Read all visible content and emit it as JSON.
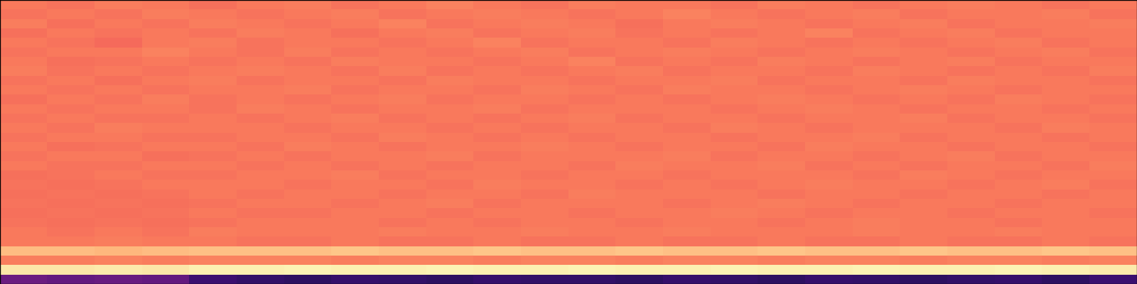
{
  "chart_data": {
    "type": "heatmap",
    "tick_labels": false,
    "color_range": [
      0,
      1
    ],
    "cells": [
      [
        0.72,
        0.71,
        0.73,
        0.72,
        0.7,
        0.72,
        0.73,
        0.71,
        0.72,
        0.74,
        0.72,
        0.71,
        0.73,
        0.72,
        0.72,
        0.71,
        0.73,
        0.72,
        0.71,
        0.72,
        0.73,
        0.72,
        0.71,
        0.72
      ],
      [
        0.71,
        0.72,
        0.71,
        0.73,
        0.72,
        0.71,
        0.72,
        0.73,
        0.71,
        0.72,
        0.73,
        0.72,
        0.71,
        0.72,
        0.74,
        0.72,
        0.71,
        0.72,
        0.73,
        0.71,
        0.72,
        0.72,
        0.73,
        0.71
      ],
      [
        0.73,
        0.7,
        0.72,
        0.71,
        0.73,
        0.72,
        0.71,
        0.72,
        0.74,
        0.71,
        0.72,
        0.73,
        0.72,
        0.7,
        0.72,
        0.73,
        0.72,
        0.71,
        0.72,
        0.73,
        0.71,
        0.72,
        0.72,
        0.73
      ],
      [
        0.7,
        0.72,
        0.71,
        0.72,
        0.71,
        0.73,
        0.72,
        0.7,
        0.72,
        0.73,
        0.71,
        0.72,
        0.73,
        0.71,
        0.72,
        0.71,
        0.72,
        0.74,
        0.71,
        0.72,
        0.73,
        0.71,
        0.72,
        0.72
      ],
      [
        0.72,
        0.71,
        0.69,
        0.72,
        0.73,
        0.71,
        0.72,
        0.72,
        0.71,
        0.72,
        0.74,
        0.71,
        0.72,
        0.72,
        0.71,
        0.73,
        0.72,
        0.71,
        0.72,
        0.71,
        0.72,
        0.73,
        0.71,
        0.72
      ],
      [
        0.71,
        0.72,
        0.72,
        0.74,
        0.72,
        0.71,
        0.73,
        0.71,
        0.72,
        0.71,
        0.72,
        0.73,
        0.71,
        0.72,
        0.73,
        0.72,
        0.71,
        0.72,
        0.73,
        0.72,
        0.71,
        0.72,
        0.73,
        0.71
      ],
      [
        0.72,
        0.7,
        0.71,
        0.72,
        0.71,
        0.72,
        0.71,
        0.73,
        0.72,
        0.72,
        0.71,
        0.72,
        0.74,
        0.71,
        0.72,
        0.71,
        0.73,
        0.72,
        0.71,
        0.72,
        0.73,
        0.71,
        0.72,
        0.72
      ],
      [
        0.73,
        0.71,
        0.72,
        0.71,
        0.72,
        0.73,
        0.72,
        0.71,
        0.73,
        0.71,
        0.72,
        0.71,
        0.72,
        0.73,
        0.71,
        0.72,
        0.72,
        0.71,
        0.73,
        0.72,
        0.71,
        0.72,
        0.71,
        0.73
      ],
      [
        0.71,
        0.72,
        0.7,
        0.72,
        0.73,
        0.71,
        0.72,
        0.72,
        0.71,
        0.73,
        0.72,
        0.72,
        0.71,
        0.72,
        0.72,
        0.73,
        0.71,
        0.72,
        0.72,
        0.71,
        0.73,
        0.72,
        0.72,
        0.71
      ],
      [
        0.72,
        0.71,
        0.72,
        0.71,
        0.72,
        0.72,
        0.73,
        0.71,
        0.72,
        0.72,
        0.71,
        0.73,
        0.72,
        0.71,
        0.73,
        0.72,
        0.72,
        0.71,
        0.72,
        0.73,
        0.72,
        0.71,
        0.72,
        0.72
      ],
      [
        0.7,
        0.72,
        0.71,
        0.73,
        0.71,
        0.72,
        0.71,
        0.72,
        0.73,
        0.71,
        0.72,
        0.72,
        0.71,
        0.72,
        0.71,
        0.72,
        0.73,
        0.72,
        0.71,
        0.72,
        0.71,
        0.73,
        0.72,
        0.71
      ],
      [
        0.72,
        0.71,
        0.72,
        0.72,
        0.71,
        0.73,
        0.72,
        0.71,
        0.72,
        0.72,
        0.73,
        0.71,
        0.72,
        0.72,
        0.72,
        0.71,
        0.72,
        0.73,
        0.72,
        0.71,
        0.72,
        0.72,
        0.71,
        0.72
      ],
      [
        0.71,
        0.72,
        0.71,
        0.71,
        0.72,
        0.71,
        0.72,
        0.73,
        0.71,
        0.72,
        0.71,
        0.72,
        0.73,
        0.71,
        0.72,
        0.72,
        0.71,
        0.72,
        0.72,
        0.73,
        0.71,
        0.72,
        0.72,
        0.71
      ],
      [
        0.72,
        0.71,
        0.73,
        0.72,
        0.72,
        0.72,
        0.71,
        0.72,
        0.72,
        0.71,
        0.72,
        0.71,
        0.72,
        0.72,
        0.71,
        0.73,
        0.72,
        0.71,
        0.72,
        0.72,
        0.72,
        0.71,
        0.73,
        0.72
      ],
      [
        0.71,
        0.72,
        0.72,
        0.71,
        0.71,
        0.72,
        0.72,
        0.71,
        0.73,
        0.72,
        0.71,
        0.72,
        0.71,
        0.72,
        0.72,
        0.71,
        0.72,
        0.72,
        0.73,
        0.71,
        0.72,
        0.72,
        0.71,
        0.72
      ],
      [
        0.72,
        0.7,
        0.71,
        0.72,
        0.72,
        0.71,
        0.73,
        0.72,
        0.71,
        0.72,
        0.72,
        0.73,
        0.72,
        0.71,
        0.72,
        0.72,
        0.71,
        0.73,
        0.72,
        0.72,
        0.71,
        0.72,
        0.72,
        0.71
      ],
      [
        0.71,
        0.72,
        0.72,
        0.7,
        0.71,
        0.72,
        0.71,
        0.72,
        0.72,
        0.73,
        0.71,
        0.72,
        0.72,
        0.72,
        0.73,
        0.71,
        0.72,
        0.72,
        0.71,
        0.72,
        0.73,
        0.71,
        0.72,
        0.72
      ],
      [
        0.72,
        0.71,
        0.71,
        0.72,
        0.72,
        0.71,
        0.72,
        0.71,
        0.72,
        0.71,
        0.72,
        0.72,
        0.71,
        0.73,
        0.72,
        0.72,
        0.73,
        0.71,
        0.72,
        0.71,
        0.72,
        0.72,
        0.71,
        0.73
      ],
      [
        0.7,
        0.71,
        0.72,
        0.71,
        0.71,
        0.72,
        0.72,
        0.73,
        0.71,
        0.72,
        0.72,
        0.71,
        0.72,
        0.72,
        0.71,
        0.72,
        0.72,
        0.72,
        0.71,
        0.73,
        0.72,
        0.71,
        0.72,
        0.72
      ],
      [
        0.71,
        0.7,
        0.71,
        0.72,
        0.72,
        0.72,
        0.71,
        0.72,
        0.72,
        0.71,
        0.73,
        0.72,
        0.72,
        0.71,
        0.72,
        0.71,
        0.72,
        0.73,
        0.72,
        0.72,
        0.71,
        0.72,
        0.73,
        0.71
      ],
      [
        0.7,
        0.71,
        0.7,
        0.71,
        0.72,
        0.71,
        0.72,
        0.72,
        0.71,
        0.72,
        0.72,
        0.71,
        0.73,
        0.72,
        0.72,
        0.72,
        0.71,
        0.72,
        0.72,
        0.71,
        0.72,
        0.72,
        0.71,
        0.72
      ],
      [
        0.71,
        0.7,
        0.71,
        0.7,
        0.71,
        0.72,
        0.72,
        0.71,
        0.72,
        0.73,
        0.71,
        0.72,
        0.72,
        0.72,
        0.71,
        0.72,
        0.73,
        0.72,
        0.71,
        0.72,
        0.72,
        0.71,
        0.72,
        0.72
      ],
      [
        0.7,
        0.71,
        0.7,
        0.71,
        0.72,
        0.71,
        0.71,
        0.72,
        0.72,
        0.71,
        0.72,
        0.72,
        0.71,
        0.72,
        0.72,
        0.73,
        0.72,
        0.71,
        0.72,
        0.72,
        0.71,
        0.72,
        0.72,
        0.71
      ],
      [
        0.71,
        0.7,
        0.71,
        0.7,
        0.71,
        0.72,
        0.72,
        0.72,
        0.71,
        0.72,
        0.71,
        0.72,
        0.72,
        0.71,
        0.72,
        0.72,
        0.71,
        0.72,
        0.73,
        0.72,
        0.72,
        0.71,
        0.72,
        0.72
      ],
      [
        0.72,
        0.71,
        0.72,
        0.71,
        0.73,
        0.72,
        0.72,
        0.72,
        0.73,
        0.72,
        0.72,
        0.73,
        0.72,
        0.72,
        0.73,
        0.72,
        0.72,
        0.72,
        0.73,
        0.72,
        0.72,
        0.73,
        0.72,
        0.72
      ],
      [
        0.72,
        0.72,
        0.73,
        0.72,
        0.72,
        0.71,
        0.71,
        0.72,
        0.71,
        0.71,
        0.72,
        0.71,
        0.71,
        0.72,
        0.71,
        0.71,
        0.72,
        0.71,
        0.71,
        0.72,
        0.71,
        0.71,
        0.72,
        0.71
      ],
      [
        0.86,
        0.86,
        0.85,
        0.86,
        0.87,
        0.87,
        0.87,
        0.88,
        0.87,
        0.87,
        0.88,
        0.87,
        0.87,
        0.88,
        0.87,
        0.87,
        0.88,
        0.87,
        0.87,
        0.88,
        0.87,
        0.87,
        0.88,
        0.87
      ],
      [
        0.73,
        0.73,
        0.74,
        0.73,
        0.74,
        0.74,
        0.74,
        0.73,
        0.74,
        0.74,
        0.73,
        0.74,
        0.74,
        0.73,
        0.74,
        0.74,
        0.73,
        0.74,
        0.74,
        0.73,
        0.74,
        0.74,
        0.73,
        0.74
      ],
      [
        0.95,
        0.95,
        0.96,
        0.95,
        0.97,
        0.97,
        0.98,
        0.97,
        0.97,
        0.98,
        0.97,
        0.97,
        0.98,
        0.97,
        0.97,
        0.98,
        0.97,
        0.97,
        0.98,
        0.97,
        0.97,
        0.98,
        0.97,
        0.96
      ],
      [
        0.32,
        0.3,
        0.31,
        0.3,
        0.2,
        0.18,
        0.17,
        0.19,
        0.18,
        0.17,
        0.19,
        0.18,
        0.18,
        0.17,
        0.19,
        0.18,
        0.17,
        0.19,
        0.18,
        0.17,
        0.18,
        0.19,
        0.17,
        0.2
      ]
    ]
  }
}
